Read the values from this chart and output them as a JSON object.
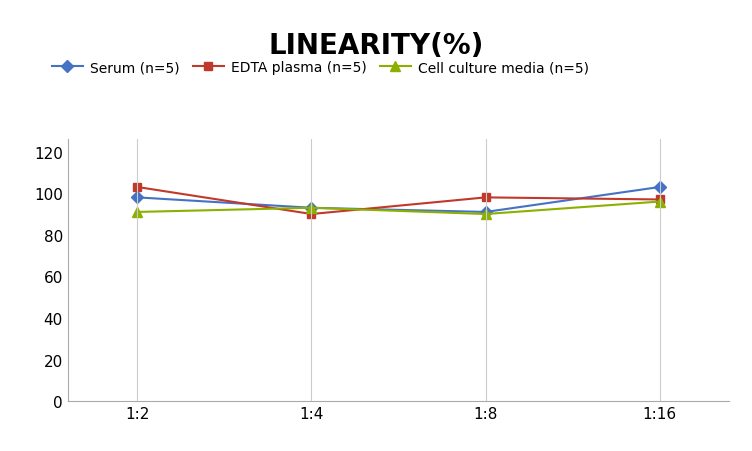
{
  "title": "LINEARITY(%)",
  "title_fontsize": 20,
  "title_fontweight": "bold",
  "x_labels": [
    "1:2",
    "1:4",
    "1:8",
    "1:16"
  ],
  "x_positions": [
    0,
    1,
    2,
    3
  ],
  "series": [
    {
      "label": "Serum (n=5)",
      "values": [
        98,
        93,
        91,
        103
      ],
      "color": "#4472C4",
      "marker": "D",
      "markersize": 6
    },
    {
      "label": "EDTA plasma (n=5)",
      "values": [
        103,
        90,
        98,
        97
      ],
      "color": "#C0392B",
      "marker": "s",
      "markersize": 6
    },
    {
      "label": "Cell culture media (n=5)",
      "values": [
        91,
        93,
        90,
        96
      ],
      "color": "#8DB000",
      "marker": "^",
      "markersize": 7
    }
  ],
  "ylim": [
    0,
    126
  ],
  "yticks": [
    0,
    20,
    40,
    60,
    80,
    100,
    120
  ],
  "grid_color": "#CCCCCC",
  "background_color": "#FFFFFF",
  "legend_fontsize": 10,
  "axis_tick_fontsize": 11
}
